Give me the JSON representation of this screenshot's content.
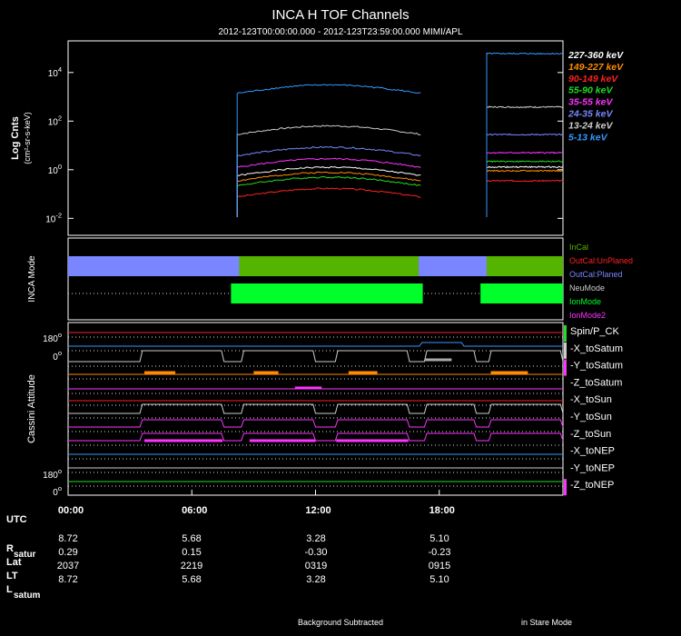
{
  "title": "INCA H TOF Channels",
  "subtitle": "2012-123T00:00:00.000 - 2012-123T23:59:00.000 MIMI/APL",
  "colors": {
    "panel_border": "#ffffff",
    "mode_blue": "#7a86ff",
    "mode_dark_green": "#55b400",
    "mode_bright_green": "#00ff2a",
    "dotted": "#dddddd"
  },
  "chart_data": [
    {
      "type": "line",
      "name": "tof-panel",
      "ylabel": "Log Cnts",
      "yunits": "(cm²-sr-s-keV)",
      "yscale": "log",
      "ylim": [
        0.002,
        200000
      ],
      "yticks": [
        {
          "label": "10",
          "sup": "4",
          "value": 10000
        },
        {
          "label": "10",
          "sup": "2",
          "value": 100
        },
        {
          "label": "10",
          "sup": "0",
          "value": 1
        },
        {
          "label": "10",
          "sup": "-2",
          "value": 0.01
        }
      ],
      "x_hours_range": [
        0,
        24
      ],
      "gaps": [
        [
          0,
          8.2
        ],
        [
          17.1,
          20.3
        ]
      ],
      "segments": [
        [
          8.2,
          17.1
        ],
        [
          20.3,
          24
        ]
      ],
      "series": [
        {
          "name": "227-360 keV",
          "color": "#ffffff",
          "level_a": 0.9,
          "level_b": 1.3
        },
        {
          "name": "149-227 keV",
          "color": "#ff8c00",
          "level_a": 0.55,
          "level_b": 0.9
        },
        {
          "name": "90-149 keV",
          "color": "#ff2020",
          "level_a": 0.12,
          "level_b": 0.35
        },
        {
          "name": "55-90 keV",
          "color": "#22dd22",
          "level_a": 0.35,
          "level_b": 2.2
        },
        {
          "name": "35-55 keV",
          "color": "#ff33ff",
          "level_a": 2.0,
          "level_b": 5.0
        },
        {
          "name": "24-35 keV",
          "color": "#7788ff",
          "level_a": 6.0,
          "level_b": 28
        },
        {
          "name": "13-24 keV",
          "color": "#cccccc",
          "level_a": 45,
          "level_b": 380
        },
        {
          "name": "5-13 keV",
          "color": "#3399ff",
          "level_a": 2200,
          "level_b": 60000
        }
      ]
    },
    {
      "type": "area",
      "name": "inca-mode-panel",
      "ylabel": "INCA Mode",
      "legend": [
        {
          "name": "InCal",
          "color": "#55b400"
        },
        {
          "name": "OutCal:UnPlaned",
          "color": "#ff2020"
        },
        {
          "name": "OutCal:Planed",
          "color": "#7a86ff"
        },
        {
          "name": "NeuMode",
          "color": "#cccccc"
        },
        {
          "name": "IonMode",
          "color": "#00ff2a"
        },
        {
          "name": "IonMode2",
          "color": "#ff33ff"
        }
      ],
      "top_row": [
        {
          "start": 0,
          "end": 8.3,
          "mode": "OutCal:Planed"
        },
        {
          "start": 8.3,
          "end": 17.0,
          "mode": "InCal"
        },
        {
          "start": 17.0,
          "end": 20.3,
          "mode": "OutCal:Planed"
        },
        {
          "start": 20.3,
          "end": 24,
          "mode": "InCal"
        }
      ],
      "bottom_row": [
        {
          "start": 7.9,
          "end": 17.2,
          "mode": "IonMode"
        },
        {
          "start": 20.0,
          "end": 24,
          "mode": "IonMode"
        }
      ]
    },
    {
      "type": "line",
      "name": "cassini-attitude-panel",
      "ylabel": "Cassini Attitude",
      "yticks_top": [
        {
          "label": "180",
          "sup": "o"
        },
        {
          "label": "0",
          "sup": "o"
        }
      ],
      "yticks_bottom": [
        {
          "label": "180",
          "sup": "o"
        },
        {
          "label": "0",
          "sup": "o"
        }
      ],
      "series": [
        {
          "name": "Spin/P_CK",
          "color": "#ffffff",
          "bar_color": "#22dd22"
        },
        {
          "name": "-X_toSatum",
          "color": "#3399ff",
          "bar_color": "#cccccc"
        },
        {
          "name": "-Y_toSatum",
          "color": "#cccccc",
          "bar_color": "#ff33ff"
        },
        {
          "name": "-Z_toSatum",
          "color": "#ff8c00",
          "bar_color": ""
        },
        {
          "name": "-X_toSun",
          "color": "#ff2020",
          "bar_color": ""
        },
        {
          "name": "-Y_toSun",
          "color": "#dddddd",
          "bar_color": ""
        },
        {
          "name": "-Z_toSun",
          "color": "#ff33ff",
          "bar_color": ""
        },
        {
          "name": "-X_toNEP",
          "color": "#3399ff",
          "bar_color": ""
        },
        {
          "name": "-Y_toNEP",
          "color": "#cccccc",
          "bar_color": ""
        },
        {
          "name": "-Z_toNEP",
          "color": "#ff2020",
          "bar_color": "#ff33ff"
        }
      ]
    }
  ],
  "time_axis": {
    "ticks": [
      {
        "label": "00:00",
        "hour": 0
      },
      {
        "label": "06:00",
        "hour": 6
      },
      {
        "label": "12:00",
        "hour": 12
      },
      {
        "label": "18:00",
        "hour": 18
      }
    ]
  },
  "ephemeris": {
    "utc_label": "UTC",
    "rows": [
      {
        "label": "R",
        "sub": "satur",
        "values": [
          "8.72",
          "5.68",
          "3.28",
          "5.10"
        ]
      },
      {
        "label": "Lat",
        "sub": "",
        "values": [
          "0.29",
          "0.15",
          "-0.30",
          "-0.23"
        ]
      },
      {
        "label": "LT",
        "sub": "",
        "values": [
          "2037",
          "2219",
          "0319",
          "0915"
        ]
      },
      {
        "label": "L",
        "sub": "satum",
        "values": [
          "8.72",
          "5.68",
          "3.28",
          "5.10"
        ]
      }
    ]
  },
  "footer": {
    "left": "Background Subtracted",
    "right": "in Stare Mode"
  }
}
